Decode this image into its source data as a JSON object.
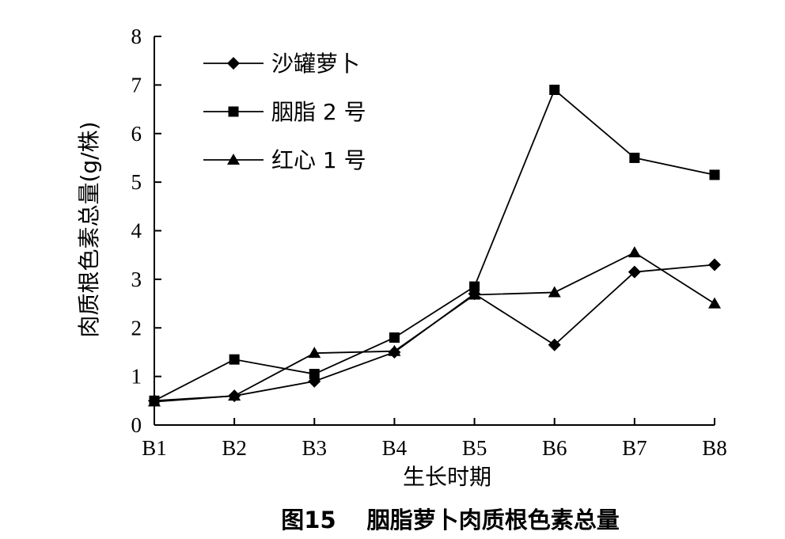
{
  "chart_data": {
    "type": "line",
    "categories": [
      "B1",
      "B2",
      "B3",
      "B4",
      "B5",
      "B6",
      "B7",
      "B8"
    ],
    "series": [
      {
        "name": "沙罐萝卜",
        "marker": "diamond",
        "values": [
          0.5,
          0.6,
          0.9,
          1.5,
          2.7,
          1.65,
          3.15,
          3.3
        ]
      },
      {
        "name": "胭脂 2 号",
        "marker": "square",
        "values": [
          0.5,
          1.35,
          1.05,
          1.8,
          2.85,
          6.9,
          5.5,
          5.15
        ]
      },
      {
        "name": "红心 1 号",
        "marker": "triangle",
        "values": [
          0.48,
          0.6,
          1.48,
          1.52,
          2.68,
          2.73,
          3.55,
          2.5
        ]
      }
    ],
    "xlabel": "生长时期",
    "ylabel": "肉质根色素总量(g/株)",
    "ylim": [
      0,
      8
    ],
    "yticks": [
      "0",
      "1",
      "2",
      "3",
      "4",
      "5",
      "6",
      "7",
      "8"
    ],
    "grid": false,
    "legend_position": "top-left",
    "caption": "图15　 胭脂萝卜肉质根色素总量"
  }
}
